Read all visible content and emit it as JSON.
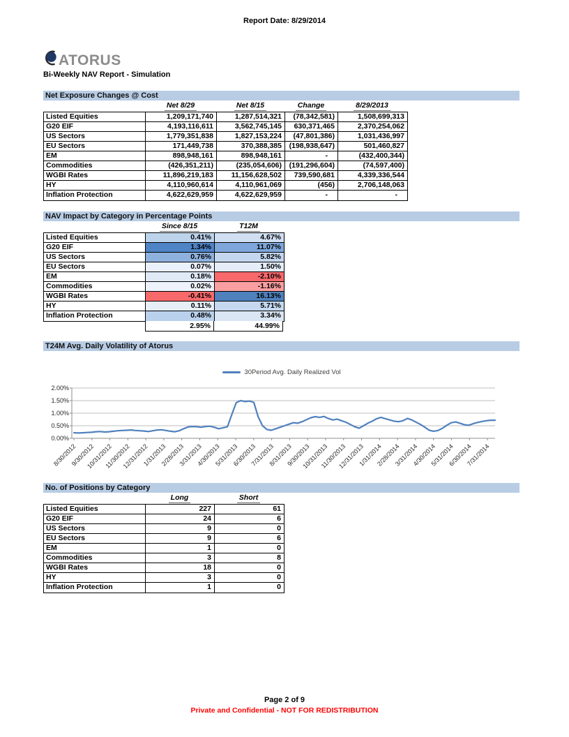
{
  "header": {
    "report_date": "Report Date: 8/29/2014",
    "logo_text": "ATORUS",
    "report_title": "Bi-Weekly NAV Report - Simulation"
  },
  "sections": {
    "net_exposure": {
      "banner": "Net Exposure Changes @ Cost",
      "columns": [
        "Net 8/29",
        "Net 8/15",
        "Change",
        "8/29/2013"
      ],
      "rows": [
        {
          "label": "Listed Equities",
          "values": [
            "1,209,171,740",
            "1,287,514,321",
            "(78,342,581)",
            "1,508,699,313"
          ]
        },
        {
          "label": "G20 EIF",
          "values": [
            "4,193,116,611",
            "3,562,745,145",
            "630,371,465",
            "2,370,254,062"
          ]
        },
        {
          "label": "US Sectors",
          "values": [
            "1,779,351,838",
            "1,827,153,224",
            "(47,801,386)",
            "1,031,436,997"
          ]
        },
        {
          "label": "EU Sectors",
          "values": [
            "171,449,738",
            "370,388,385",
            "(198,938,647)",
            "501,460,827"
          ]
        },
        {
          "label": "EM",
          "values": [
            "898,948,161",
            "898,948,161",
            "-",
            "(432,400,344)"
          ]
        },
        {
          "label": "Commodities",
          "values": [
            "(426,351,211)",
            "(235,054,606)",
            "(191,296,604)",
            "(74,597,400)"
          ]
        },
        {
          "label": "WGBI Rates",
          "values": [
            "11,896,219,183",
            "11,156,628,502",
            "739,590,681",
            "4,339,336,544"
          ]
        },
        {
          "label": "HY",
          "values": [
            "4,110,960,614",
            "4,110,961,069",
            "(456)",
            "2,706,148,063"
          ]
        },
        {
          "label": "Inflation Protection",
          "values": [
            "4,622,629,959",
            "4,622,629,959",
            "-",
            "-"
          ]
        }
      ]
    },
    "nav_impact": {
      "banner": "NAV Impact by Category in Percentage Points",
      "columns": [
        "Since 8/15",
        "T12M"
      ],
      "rows": [
        {
          "label": "Listed Equities",
          "values": [
            "0.41%",
            "4.67%"
          ],
          "colors": [
            "#BDD3EC",
            "#D0DFF2"
          ]
        },
        {
          "label": "G20 EIF",
          "values": [
            "1.34%",
            "11.07%"
          ],
          "colors": [
            "#4F84C6",
            "#7FA7DB"
          ]
        },
        {
          "label": "US Sectors",
          "values": [
            "0.76%",
            "5.82%"
          ],
          "colors": [
            "#8FB1DD",
            "#C4D7EE"
          ]
        },
        {
          "label": "EU Sectors",
          "values": [
            "0.07%",
            "1.50%"
          ],
          "colors": [
            "#EBF1FA",
            "#E5EDF8"
          ]
        },
        {
          "label": "EM",
          "values": [
            "0.18%",
            "-2.10%"
          ],
          "colors": [
            "#DFEAF6",
            "#F8696B"
          ]
        },
        {
          "label": "Commodities",
          "values": [
            "0.02%",
            "-1.16%"
          ],
          "colors": [
            "#EEF3FB",
            "#FA9FA1"
          ]
        },
        {
          "label": "WGBI Rates",
          "values": [
            "-0.41%",
            "16.13%"
          ],
          "colors": [
            "#F8696B",
            "#4F81BD"
          ]
        },
        {
          "label": "HY",
          "values": [
            "0.11%",
            "5.71%"
          ],
          "colors": [
            "#E6EEF8",
            "#C5D8EF"
          ]
        },
        {
          "label": "Inflation Protection",
          "values": [
            "0.48%",
            "3.34%"
          ],
          "colors": [
            "#B9D1EC",
            "#DAE6F4"
          ]
        }
      ],
      "total": [
        "2.95%",
        "44.99%"
      ]
    },
    "volatility": {
      "banner": "T24M Avg. Daily Volatility of Atorus"
    },
    "positions": {
      "banner": "No. of Positions by Category",
      "columns": [
        "Long",
        "Short"
      ],
      "rows": [
        {
          "label": "Listed Equities",
          "values": [
            "227",
            "61"
          ]
        },
        {
          "label": "G20 EIF",
          "values": [
            "24",
            "6"
          ]
        },
        {
          "label": "US Sectors",
          "values": [
            "9",
            "0"
          ]
        },
        {
          "label": "EU Sectors",
          "values": [
            "9",
            "6"
          ]
        },
        {
          "label": "EM",
          "values": [
            "1",
            "0"
          ]
        },
        {
          "label": "Commodities",
          "values": [
            "3",
            "8"
          ]
        },
        {
          "label": "WGBI Rates",
          "values": [
            "18",
            "0"
          ]
        },
        {
          "label": "HY",
          "values": [
            "3",
            "0"
          ]
        },
        {
          "label": "Inflation Protection",
          "values": [
            "1",
            "0"
          ]
        }
      ]
    }
  },
  "chart_data": {
    "type": "line",
    "title": "T24M Avg. Daily Volatility of Atorus",
    "legend_position": "top",
    "grid": "horizontal",
    "line_color": "#4F81BD",
    "unit": "%",
    "ylim": [
      0,
      2.0
    ],
    "y_ticks": [
      0,
      0.5,
      1.0,
      1.5,
      2.0
    ],
    "y_tick_labels": [
      "0.00%",
      "0.50%",
      "1.00%",
      "1.50%",
      "2.00%"
    ],
    "x_tick_labels": [
      "8/30/2012",
      "9/30/2012",
      "10/31/2012",
      "11/30/2012",
      "12/31/2012",
      "1/31/2013",
      "2/28/2013",
      "3/31/2013",
      "4/30/2013",
      "5/31/2013",
      "6/30/2013",
      "7/31/2013",
      "8/31/2013",
      "9/30/2013",
      "10/31/2013",
      "11/30/2013",
      "12/31/2013",
      "1/31/2014",
      "2/28/2014",
      "3/31/2014",
      "4/30/2014",
      "5/31/2014",
      "6/30/2014",
      "7/31/2014"
    ],
    "series": [
      {
        "name": "30Period Avg. Daily Realized Vol",
        "values": [
          0.22,
          0.21,
          0.22,
          0.23,
          0.24,
          0.26,
          0.27,
          0.25,
          0.26,
          0.28,
          0.3,
          0.31,
          0.32,
          0.33,
          0.31,
          0.3,
          0.29,
          0.27,
          0.3,
          0.33,
          0.34,
          0.31,
          0.28,
          0.26,
          0.3,
          0.38,
          0.45,
          0.47,
          0.46,
          0.44,
          0.47,
          0.48,
          0.44,
          0.38,
          0.42,
          0.46,
          0.95,
          1.42,
          1.5,
          1.46,
          1.48,
          1.43,
          0.85,
          0.5,
          0.35,
          0.32,
          0.38,
          0.44,
          0.5,
          0.56,
          0.62,
          0.6,
          0.66,
          0.74,
          0.82,
          0.86,
          0.83,
          0.87,
          0.79,
          0.73,
          0.76,
          0.7,
          0.64,
          0.55,
          0.46,
          0.4,
          0.5,
          0.6,
          0.68,
          0.78,
          0.83,
          0.78,
          0.73,
          0.68,
          0.66,
          0.7,
          0.79,
          0.73,
          0.64,
          0.55,
          0.44,
          0.32,
          0.28,
          0.31,
          0.4,
          0.52,
          0.62,
          0.65,
          0.6,
          0.54,
          0.52,
          0.58,
          0.63,
          0.67,
          0.7,
          0.72,
          0.72
        ]
      }
    ]
  },
  "footer": {
    "page": "Page 2 of 9",
    "confidential": "Private and Confidential - NOT FOR REDISTRIBUTION"
  }
}
